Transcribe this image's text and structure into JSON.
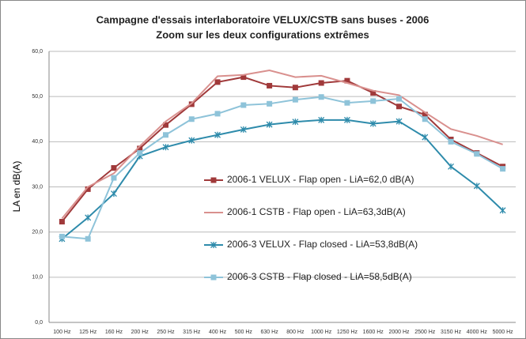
{
  "chart_data": {
    "type": "line",
    "title": "Campagne d'essais interlaboratoire VELUX/CSTB sans buses - 2006",
    "subtitle": "Zoom sur les deux configurations extrêmes",
    "y_label": "LA en dB(A)",
    "categories": [
      "100 Hz",
      "125 Hz",
      "160 Hz",
      "200 Hz",
      "250 Hz",
      "315 Hz",
      "400 Hz",
      "500 Hz",
      "630 Hz",
      "800 Hz",
      "1000 Hz",
      "1250 Hz",
      "1600 Hz",
      "2000 Hz",
      "2500 Hz",
      "3150 Hz",
      "4000 Hz",
      "5000 Hz"
    ],
    "ylim": [
      0,
      60
    ],
    "yticks": [
      {
        "value": 0,
        "label": "0,0"
      },
      {
        "value": 10,
        "label": "10,0"
      },
      {
        "value": 20,
        "label": "20,0"
      },
      {
        "value": 30,
        "label": "30,0"
      },
      {
        "value": 40,
        "label": "40,0"
      },
      {
        "value": 50,
        "label": "50,0"
      },
      {
        "value": 60,
        "label": "60,0"
      }
    ],
    "grid": true,
    "series": [
      {
        "name": "2006-1 VELUX - Flap open - LiA=62,0 dB(A)",
        "color": "#a0393a",
        "marker": "square",
        "values": [
          22.3,
          29.5,
          34.2,
          38.5,
          43.7,
          48.3,
          53.2,
          54.3,
          52.4,
          52,
          53,
          53.5,
          50.8,
          47.8,
          46,
          40.5,
          37.5,
          34.5
        ]
      },
      {
        "name": "2006-1 CSTB - Flap open - LiA=63,3dB(A)",
        "color": "#d9908e",
        "marker": "none",
        "values": [
          23,
          30,
          33,
          39,
          44.5,
          48.5,
          54.5,
          54.8,
          55.8,
          54.3,
          54.6,
          53,
          51.3,
          50.3,
          46.5,
          42.8,
          41.3,
          39.4
        ]
      },
      {
        "name": "2006-3 VELUX - Flap closed - LiA=53,8dB(A)",
        "color": "#2e8bab",
        "marker": "star",
        "values": [
          18.5,
          23.2,
          28.5,
          36.8,
          38.8,
          40.3,
          41.5,
          42.7,
          43.8,
          44.4,
          44.8,
          44.8,
          44,
          44.5,
          41,
          34.5,
          30.2,
          24.8
        ]
      },
      {
        "name": "2006-3 CSTB - Flap closed - LiA=58,5dB(A)",
        "color": "#8ec3d9",
        "marker": "square",
        "values": [
          19,
          18.5,
          32,
          37.5,
          41.5,
          45,
          46.2,
          48.1,
          48.4,
          49.3,
          49.9,
          48.6,
          49,
          49.5,
          45,
          40,
          37.3,
          34
        ]
      }
    ]
  }
}
